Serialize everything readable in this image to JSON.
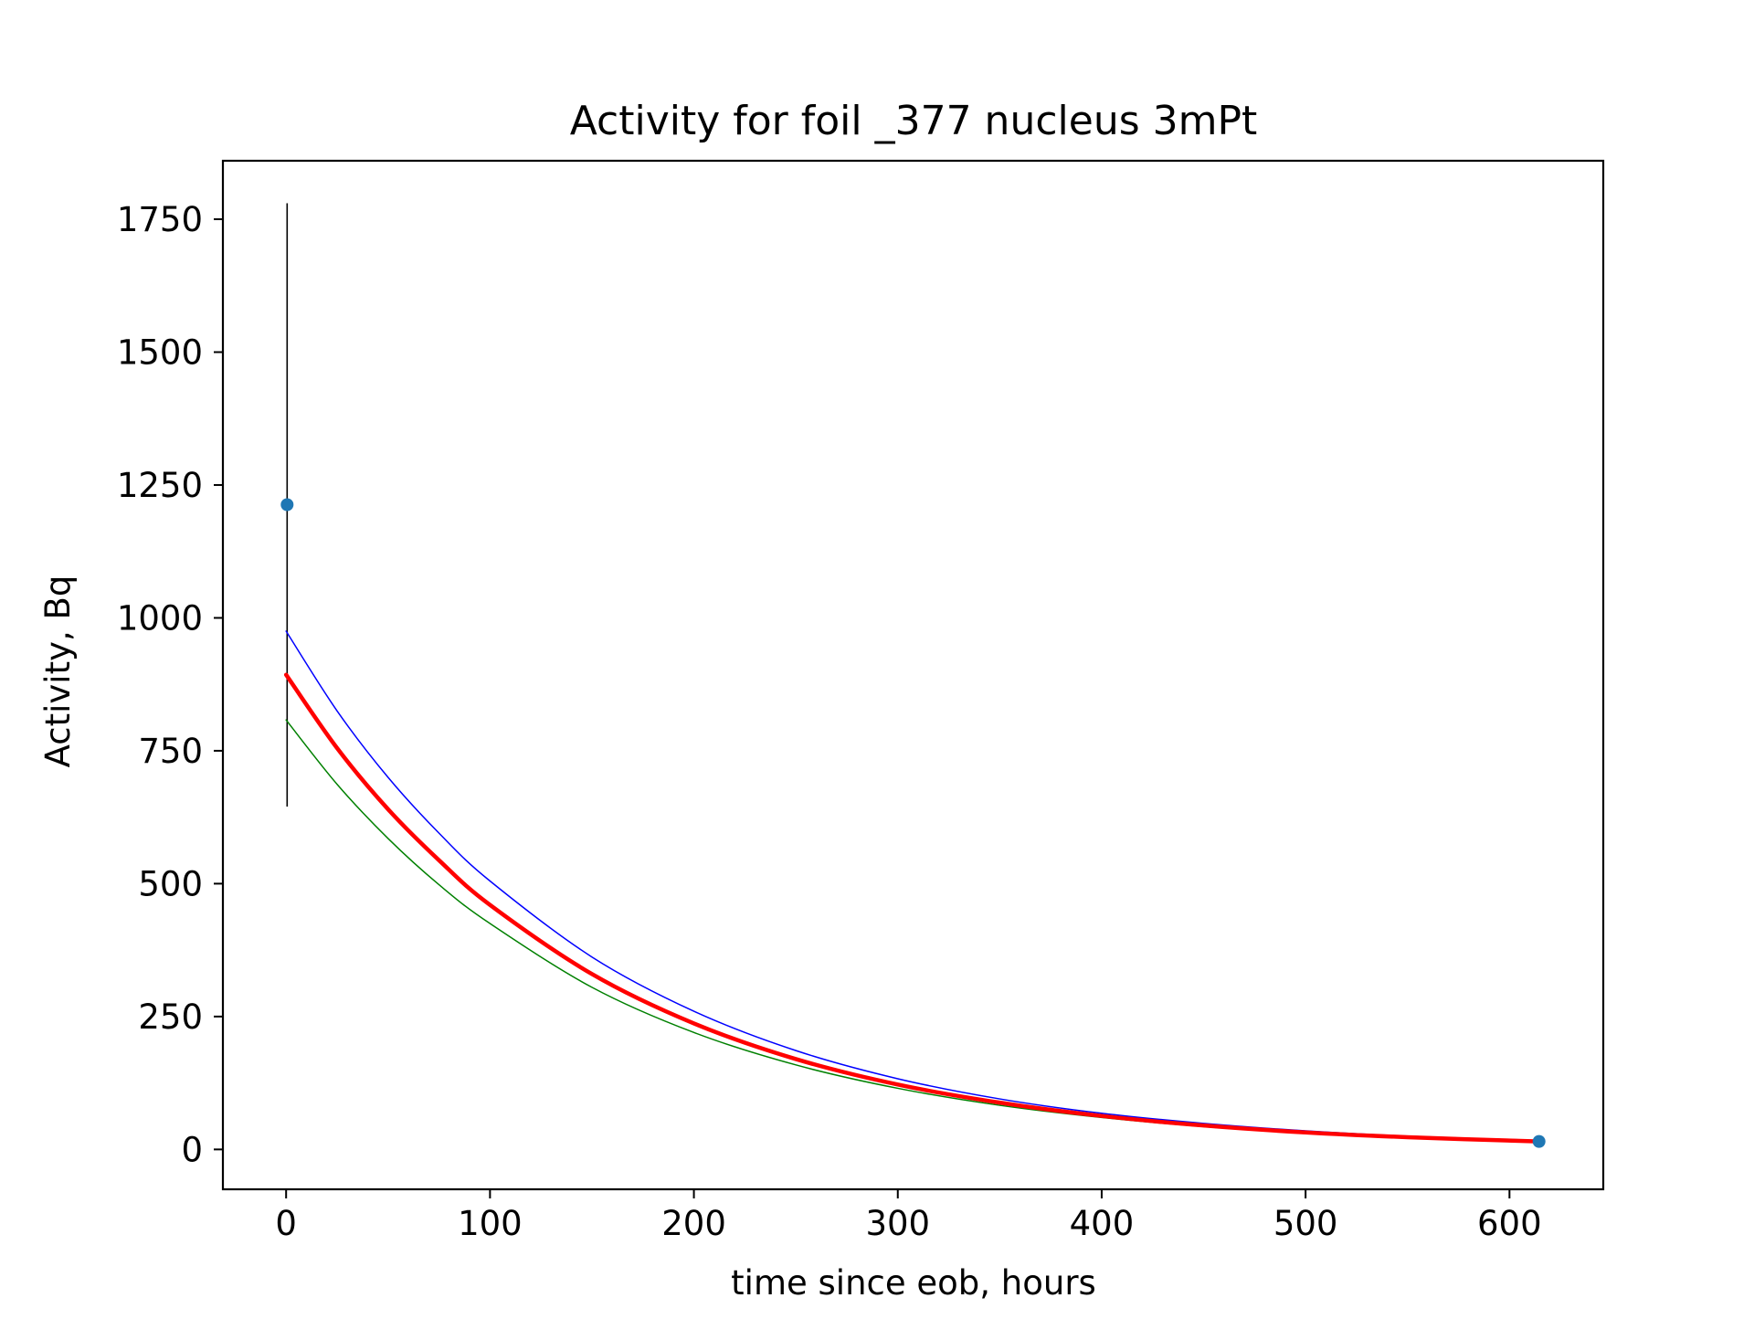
{
  "chart_data": {
    "type": "line",
    "title": "Activity for foil _377 nucleus 3mPt",
    "xlabel": "time since eob, hours",
    "ylabel": "Activity, Bq",
    "xlim": [
      -31,
      646
    ],
    "ylim": [
      -75,
      1860
    ],
    "xticks": [
      0,
      100,
      200,
      300,
      400,
      500,
      600
    ],
    "yticks": [
      0,
      250,
      500,
      750,
      1000,
      1250,
      1500,
      1750
    ],
    "grid": false,
    "legend": "none",
    "measurements": {
      "x": [
        0.5,
        614.5
      ],
      "y": [
        1213,
        15
      ],
      "yerr_low": [
        568,
        0
      ],
      "yerr_high": [
        567,
        0
      ],
      "color": "#1f77b4",
      "errorbar_color": "#000000"
    },
    "series": [
      {
        "role": "fit",
        "color": "#ff0000",
        "x": [
          0,
          25,
          50,
          75,
          100,
          150,
          200,
          250,
          300,
          350,
          400,
          450,
          500,
          550,
          614.5
        ],
        "values": [
          893,
          755,
          640,
          544,
          460,
          330,
          237,
          170,
          122,
          88,
          63,
          45,
          32,
          23,
          15
        ]
      },
      {
        "role": "upper",
        "color": "#0000ff",
        "x": [
          0,
          25,
          50,
          75,
          100,
          150,
          200,
          250,
          300,
          350,
          400,
          450,
          500,
          550,
          614.5
        ],
        "values": [
          975,
          825,
          700,
          595,
          505,
          362,
          260,
          186,
          133,
          95,
          68,
          49,
          35,
          25,
          17
        ]
      },
      {
        "role": "lower",
        "color": "#008000",
        "x": [
          0,
          25,
          50,
          75,
          100,
          150,
          200,
          250,
          300,
          350,
          400,
          450,
          500,
          550,
          614.5
        ],
        "values": [
          808,
          687,
          585,
          498,
          425,
          305,
          220,
          159,
          115,
          83,
          60,
          43,
          31,
          22,
          14
        ]
      }
    ]
  }
}
